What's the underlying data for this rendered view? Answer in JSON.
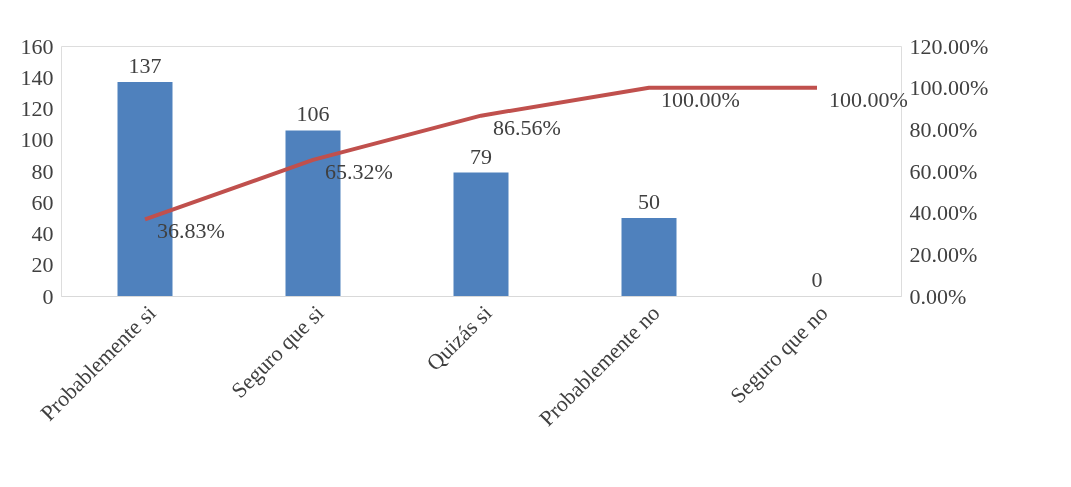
{
  "chart_data": {
    "type": "bar",
    "categories": [
      "Probablemente si",
      "Seguro que si",
      "Quizás si",
      "Probablemente no",
      "Seguro que no"
    ],
    "series": [
      {
        "color": "#4f81bd",
        "values": [
          137,
          106,
          79,
          50,
          0
        ],
        "value_labels": [
          "137",
          "106",
          "79",
          "50",
          "0"
        ]
      },
      {
        "type": "line",
        "axis": "y2",
        "color": "#c0504d",
        "values": [
          36.83,
          65.32,
          86.56,
          100,
          100
        ],
        "value_labels": [
          "36.83%",
          "65.32%",
          "86.56%",
          "100.00%",
          "100.00%"
        ]
      }
    ],
    "ylim": [
      0,
      160
    ],
    "yticks": [
      0,
      20,
      40,
      60,
      80,
      100,
      120,
      140,
      160
    ],
    "y2lim": [
      0,
      120
    ],
    "y2ticks": [
      {
        "value": 0,
        "label": "0.00%"
      },
      {
        "value": 20,
        "label": "20.00%"
      },
      {
        "value": 40,
        "label": "40.00%"
      },
      {
        "value": 60,
        "label": "60.00%"
      },
      {
        "value": 80,
        "label": "80.00%"
      },
      {
        "value": 100,
        "label": "100.00%"
      },
      {
        "value": 120,
        "label": "120.00%"
      }
    ]
  }
}
